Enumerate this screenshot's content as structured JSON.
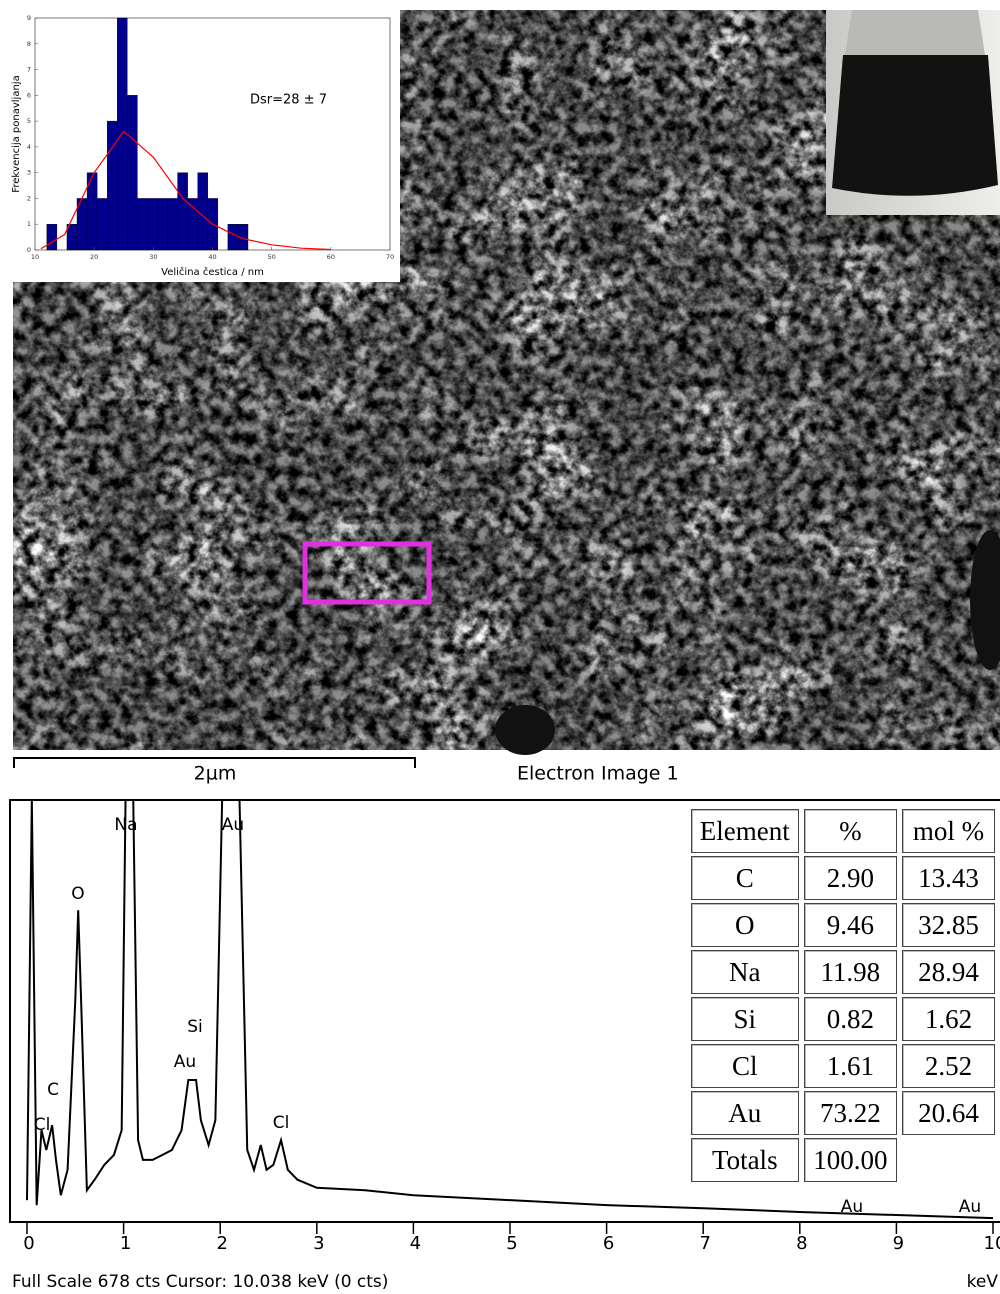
{
  "chart_data": [
    {
      "type": "histogram",
      "xlabel": "Veličina čestica / nm",
      "ylabel": "Frekvencija ponavljanja",
      "annotation": "Dsr=28 ± 7",
      "bins": [
        12,
        13.7,
        15.4,
        17.1,
        18.8,
        20.5,
        22.2,
        23.9,
        25.6,
        27.3,
        29,
        30.7,
        32.4,
        34.1,
        35.8,
        37.5,
        39.2,
        40.9,
        42.6,
        44.3,
        46
      ],
      "counts": [
        1,
        0,
        1,
        2,
        3,
        2,
        5,
        9,
        6,
        2,
        2,
        2,
        2,
        3,
        2,
        3,
        2,
        0,
        1,
        1
      ],
      "color": "#00008b",
      "fit": {
        "color": "#ff0000",
        "x": [
          11,
          15,
          20,
          25,
          30,
          35,
          40,
          45,
          50,
          55,
          60
        ],
        "values": [
          0.05,
          0.6,
          3.0,
          4.6,
          3.6,
          2.0,
          1.0,
          0.45,
          0.2,
          0.07,
          0.02
        ]
      },
      "xlim": [
        10,
        70
      ],
      "xticks": [
        10,
        20,
        30,
        40,
        50,
        60,
        70
      ],
      "ylim": [
        0,
        9
      ],
      "yticks": [
        0,
        1,
        2,
        3,
        4,
        5,
        6,
        7,
        8,
        9
      ]
    },
    {
      "type": "line",
      "x": [
        0.0,
        0.05,
        0.1,
        0.15,
        0.2,
        0.26,
        0.3,
        0.35,
        0.42,
        0.5,
        0.53,
        0.56,
        0.62,
        0.7,
        0.8,
        0.9,
        0.98,
        1.02,
        1.1,
        1.15,
        1.2,
        1.3,
        1.4,
        1.5,
        1.6,
        1.67,
        1.75,
        1.8,
        1.88,
        1.95,
        2.02,
        2.2,
        2.28,
        2.35,
        2.42,
        2.48,
        2.55,
        2.63,
        2.7,
        2.8,
        3.0,
        3.5,
        4,
        5,
        6,
        7,
        8,
        9,
        10
      ],
      "values": [
        32,
        678,
        24,
        145,
        113,
        153,
        97,
        40,
        81,
        355,
        500,
        355,
        48,
        65,
        89,
        105,
        145,
        678,
        678,
        129,
        97,
        97,
        105,
        113,
        145,
        226,
        226,
        161,
        121,
        161,
        678,
        678,
        113,
        81,
        121,
        81,
        89,
        129,
        81,
        65,
        52,
        48,
        40,
        32,
        24,
        19,
        13,
        8,
        3
      ],
      "color": "#000000",
      "xlim": [
        0,
        10
      ],
      "xticks": [
        0,
        1,
        2,
        3,
        4,
        5,
        6,
        7,
        8,
        9,
        10
      ],
      "ylim": [
        0,
        678
      ],
      "xlabel": "keV",
      "status": "Full Scale 678 cts  Cursor: 10.038 keV (0 cts)",
      "annotations": [
        "Na",
        "Au",
        "O",
        "Si",
        "Au",
        "C",
        "Cl",
        "Cl",
        "Au",
        "Au"
      ]
    }
  ],
  "sem_image": {
    "scale_bar": "2µm",
    "caption": "Electron Image 1"
  },
  "table": {
    "header": [
      "Element",
      "%",
      "mol %"
    ],
    "rows": [
      [
        "C",
        "2.90",
        "13.43"
      ],
      [
        "O",
        "9.46",
        "32.85"
      ],
      [
        "Na",
        "11.98",
        "28.94"
      ],
      [
        "Si",
        "0.82",
        "1.62"
      ],
      [
        "Cl",
        "1.61",
        "2.52"
      ],
      [
        "Au",
        "73.22",
        "20.64"
      ]
    ],
    "totals": [
      "Totals",
      "100.00"
    ]
  }
}
